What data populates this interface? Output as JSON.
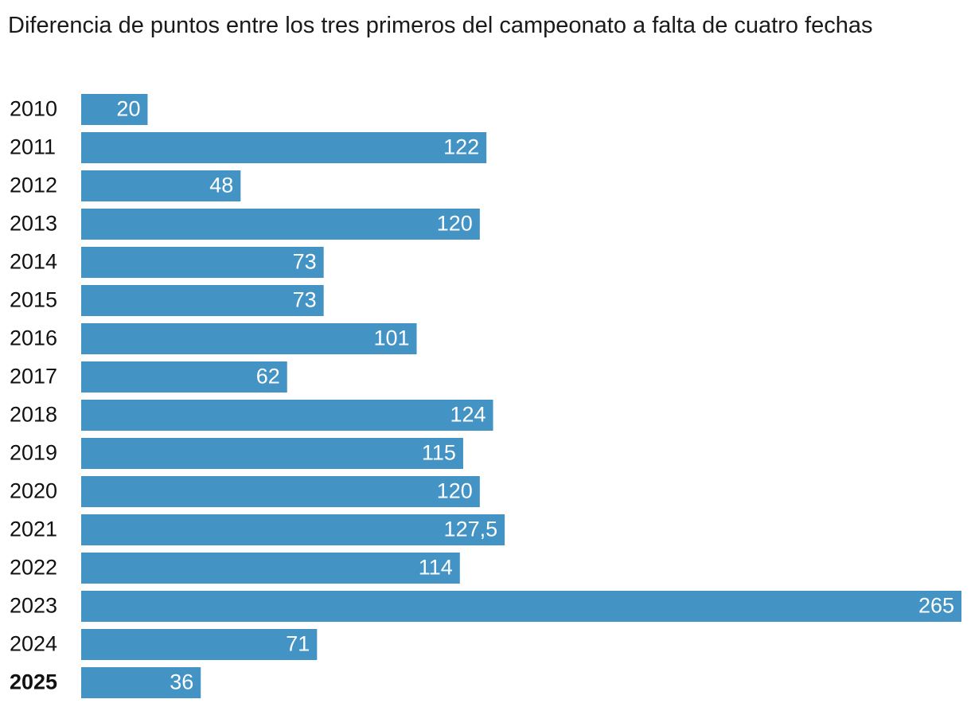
{
  "chart_data": {
    "type": "bar",
    "orientation": "horizontal",
    "title": "Diferencia de puntos entre los tres primeros del campeonato a falta de cuatro fechas",
    "categories": [
      "2010",
      "2011",
      "2012",
      "2013",
      "2014",
      "2015",
      "2016",
      "2017",
      "2018",
      "2019",
      "2020",
      "2021",
      "2022",
      "2023",
      "2024",
      "2025"
    ],
    "values": [
      20,
      122,
      48,
      120,
      73,
      73,
      101,
      62,
      124,
      115,
      120,
      127.5,
      114,
      265,
      71,
      36
    ],
    "value_labels": [
      "20",
      "122",
      "48",
      "120",
      "73",
      "73",
      "101",
      "62",
      "124",
      "115",
      "120",
      "127,5",
      "114",
      "265",
      "71",
      "36"
    ],
    "color": "#4394c4",
    "highlight_category": "2025"
  }
}
